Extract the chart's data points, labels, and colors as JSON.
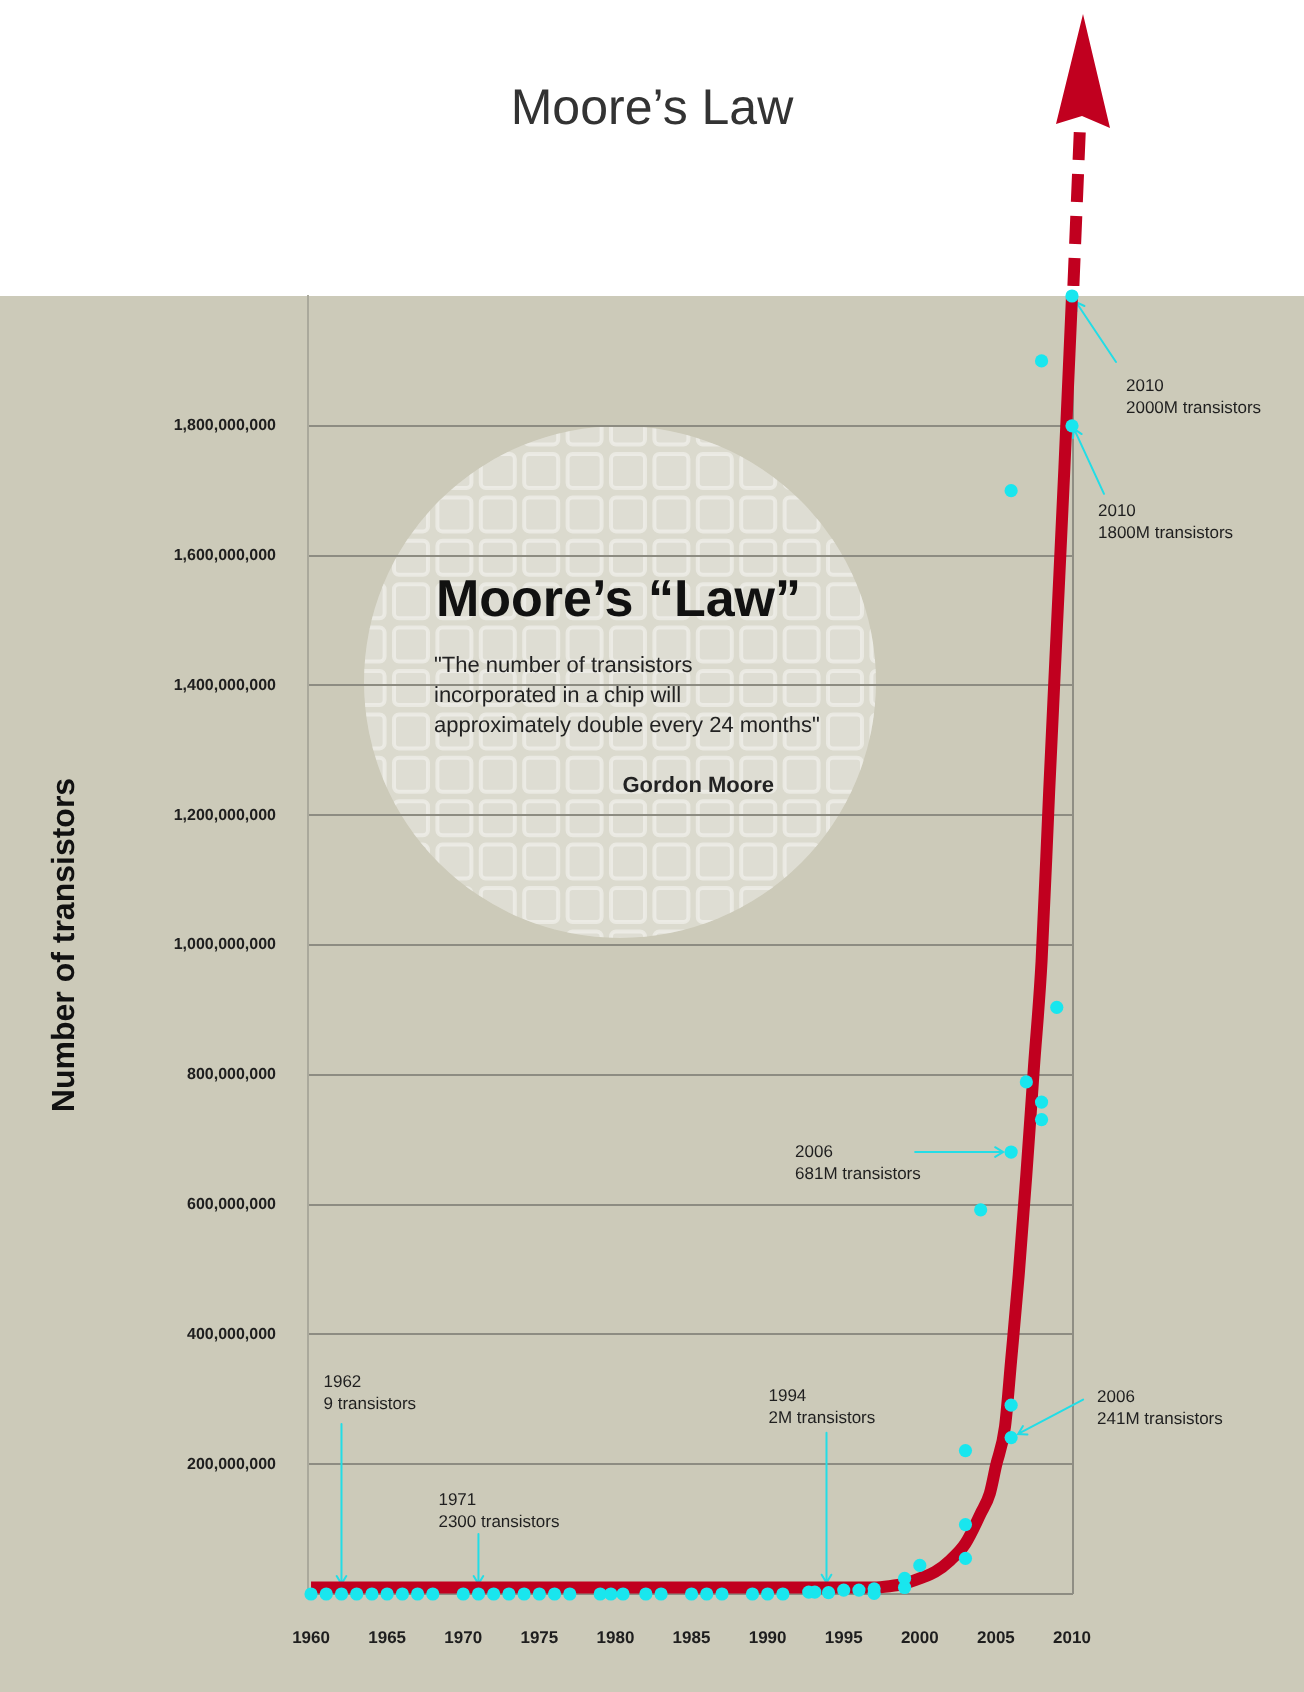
{
  "chart_data": {
    "type": "scatter",
    "title": "Moore’s Law",
    "ylabel": "Number of transistors",
    "xlim": [
      1959.8,
      2010
    ],
    "xticks": [
      1960,
      1965,
      1970,
      1975,
      1980,
      1985,
      1990,
      1995,
      2000,
      2005,
      2010
    ],
    "ylim": [
      0,
      2000000000
    ],
    "yticks": [
      {
        "value": 200000000,
        "label": "200,000,000"
      },
      {
        "value": 400000000,
        "label": "400,000,000"
      },
      {
        "value": 600000000,
        "label": "600,000,000"
      },
      {
        "value": 800000000,
        "label": "800,000,000"
      },
      {
        "value": 1000000000,
        "label": "1,000,000,000"
      },
      {
        "value": 1200000000,
        "label": "1,200,000,000"
      },
      {
        "value": 1400000000,
        "label": "1,400,000,000"
      },
      {
        "value": 1600000000,
        "label": "1,600,000,000"
      },
      {
        "value": 1800000000,
        "label": "1,800,000,000"
      }
    ],
    "grid": "y",
    "series": [
      {
        "type": "scatter",
        "color": "#19e6ee",
        "marker": "circle",
        "x": [
          1960,
          1961,
          1962,
          1963,
          1964,
          1965,
          1966,
          1967,
          1968,
          1970,
          1971,
          1972,
          1973,
          1974,
          1975,
          1976,
          1977,
          1979,
          1979.7,
          1980.5,
          1982,
          1983,
          1985,
          1986,
          1987,
          1989,
          1990,
          1991,
          1992.7,
          1993.1,
          1994,
          1995,
          1996,
          1997,
          1997,
          1999,
          1999,
          2000,
          2003,
          2003,
          2003,
          2004,
          2006,
          2006,
          2006,
          2006,
          2007,
          2008,
          2008,
          2008,
          2009,
          2010,
          2010
        ],
        "values": [
          0,
          0,
          9,
          0,
          0,
          0,
          0,
          0,
          0,
          0,
          2300,
          0,
          0,
          0,
          0,
          0,
          0,
          0,
          0,
          0,
          0,
          0,
          0,
          0,
          0,
          0,
          0,
          0,
          3000000,
          3000000,
          2000000,
          6000000,
          6000000,
          8000000,
          1000000,
          10000000,
          24000000,
          44000000,
          55000000,
          107000000,
          221000000,
          592000000,
          241000000,
          291000000,
          681000000,
          1700000000,
          789000000,
          731000000,
          758000000,
          1900000000,
          904000000,
          1800000000,
          2000000000
        ]
      },
      {
        "type": "line",
        "color": "#c1001f",
        "marker": "none",
        "x": [
          1960,
          1997,
          1998,
          1999,
          2000,
          2001,
          2002,
          2003,
          2004,
          2004.6,
          2005,
          2005.6,
          2006,
          2006.5,
          2007,
          2007.5,
          2008,
          2008.5,
          2009,
          2009.5,
          2010
        ],
        "values": [
          10000000,
          10000000,
          12000000,
          16000000,
          24000000,
          34000000,
          52000000,
          78000000,
          124000000,
          155000000,
          197000000,
          258000000,
          360000000,
          492000000,
          646000000,
          812000000,
          975000000,
          1237000000,
          1486000000,
          1735000000,
          2000000000
        ]
      }
    ],
    "annotations": [
      "Moore’s “Law”",
      "\"The number of transistors\nincorporated in a chip will\napproximately double every 24 months\"",
      "Gordon Moore",
      {
        "text": "1962\n9 transistors",
        "x": 1962,
        "y": 9
      },
      {
        "text": "1971\n2300 transistors",
        "x": 1971,
        "y": 2300
      },
      {
        "text": "1994\n2M transistors",
        "x": 1994,
        "y": 2000000
      },
      {
        "text": "2006\n681M transistors",
        "x": 2006,
        "y": 681000000
      },
      {
        "text": "2006\n241M transistors",
        "x": 2006,
        "y": 241000000
      },
      {
        "text": "2010\n2000M transistors",
        "x": 2010,
        "y": 2000000000
      },
      {
        "text": "2010\n1800M transistors",
        "x": 2010,
        "y": 1800000000
      }
    ]
  }
}
